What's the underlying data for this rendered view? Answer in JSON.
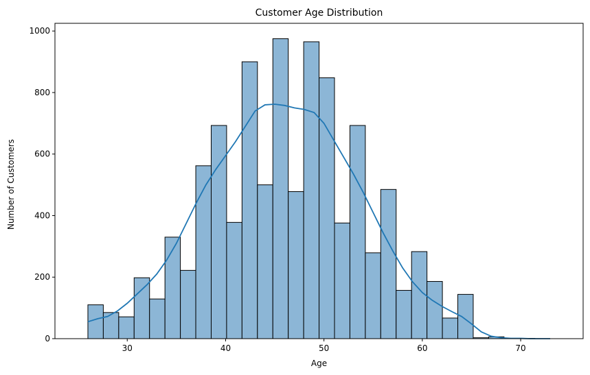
{
  "chart_data": {
    "type": "bar",
    "title": "Customer Age Distribution",
    "xlabel": "Age",
    "ylabel": "Number of Customers",
    "xlim": [
      22.65,
      76.35
    ],
    "ylim": [
      0,
      1025
    ],
    "xticks": [
      30,
      40,
      50,
      60,
      70
    ],
    "yticks": [
      0,
      200,
      400,
      600,
      800,
      1000
    ],
    "bin_start": 26,
    "bin_width": 1.567,
    "values": [
      110,
      85,
      71,
      198,
      129,
      330,
      222,
      562,
      693,
      378,
      900,
      500,
      975,
      478,
      965,
      848,
      376,
      693,
      279,
      485,
      157,
      283,
      186,
      67,
      144,
      3,
      6,
      1,
      1,
      0
    ],
    "kde": {
      "x": [
        26,
        27,
        28,
        29,
        30,
        31,
        32,
        33,
        34,
        35,
        36,
        37,
        38,
        39,
        40,
        41,
        42,
        43,
        44,
        45,
        46,
        47,
        48,
        49,
        50,
        51,
        52,
        53,
        54,
        55,
        56,
        57,
        58,
        59,
        60,
        61,
        62,
        63,
        64,
        65,
        66,
        67,
        68,
        69,
        70,
        71,
        72,
        73
      ],
      "y": [
        55,
        65,
        72,
        90,
        115,
        145,
        175,
        210,
        255,
        310,
        375,
        440,
        500,
        550,
        595,
        640,
        690,
        740,
        760,
        762,
        758,
        750,
        745,
        735,
        700,
        645,
        590,
        535,
        475,
        410,
        345,
        285,
        230,
        185,
        150,
        125,
        105,
        88,
        72,
        48,
        22,
        8,
        3,
        1,
        1,
        0,
        0,
        0
      ]
    },
    "colors": {
      "bar_fill": "#8cb6d6",
      "bar_edge": "#000000",
      "kde_line": "#1f77b4"
    },
    "grid": false,
    "legend": "none"
  }
}
